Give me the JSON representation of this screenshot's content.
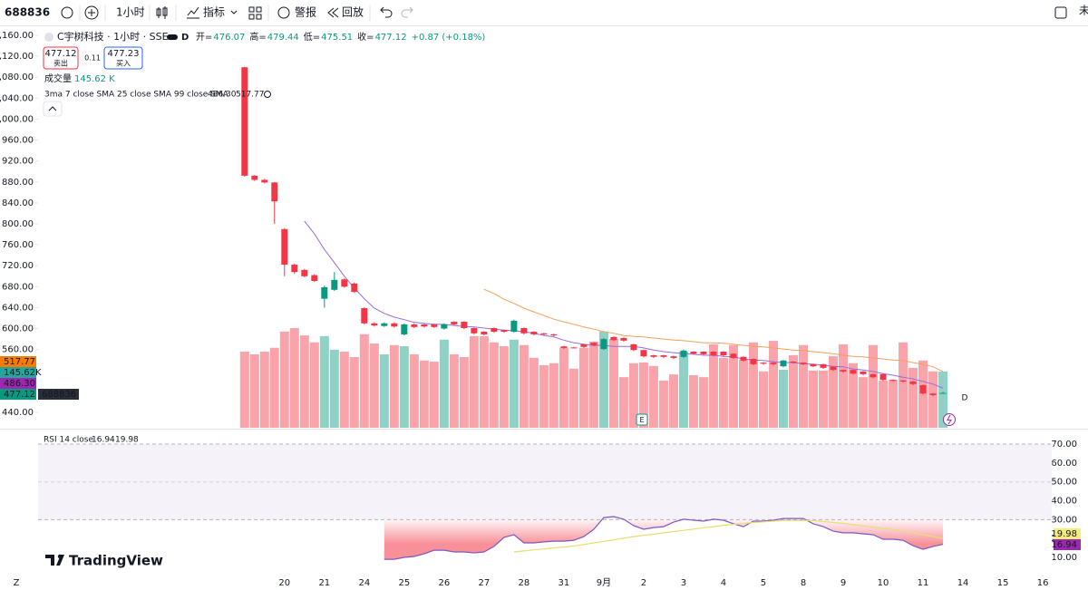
{
  "toolbar": {
    "symbol": "688836",
    "interval": "1小时",
    "indicators": "指标",
    "alerts": "警报",
    "replay": "回放",
    "cut_off": "未"
  },
  "legend": {
    "title": "C宇树科技 · 1小时 · SSE",
    "badge": "D",
    "ohlc": [
      {
        "label": "开=",
        "value": 476.07
      },
      {
        "label": "高=",
        "value": 479.44
      },
      {
        "label": "低=",
        "value": 475.51
      },
      {
        "label": "收=",
        "value": 477.12
      }
    ],
    "change": "+0.87 (+0.18%)",
    "sell": {
      "price": 477.12,
      "label": "卖出"
    },
    "spread": 0.11,
    "buy": {
      "price": 477.23,
      "label": "买入"
    },
    "volume": {
      "label": "成交量",
      "value": "145.62 K"
    },
    "ma": {
      "label": "3ma 7 close SMA 25 close SMA 99 close SMA",
      "values": [
        "486.30",
        "517.77"
      ]
    },
    "rsi": {
      "label": "RSI 14 close",
      "values": [
        "16.94",
        "19.98"
      ]
    }
  },
  "price_tags": [
    {
      "label": "517.77",
      "color": "#f57c00"
    },
    {
      "label": "145.62K",
      "color": "#26a69a"
    },
    {
      "label": "486.30",
      "color": "#9c27b0"
    },
    {
      "label": "477.12",
      "color": "#089981"
    }
  ],
  "symbol_tag": "688836",
  "rsi_tags": [
    {
      "label": "19.98",
      "color": "#f5ec7a"
    },
    {
      "label": "16.94",
      "color": "#9c27b0"
    }
  ],
  "markers": {
    "earnings": "E",
    "dividend": "D"
  },
  "corner_label": "Z",
  "watermark": "TradingView",
  "chart_data": [
    {
      "type": "candlestick",
      "xlim": [
        -20.7,
        80.9
      ],
      "xticks": [
        {
          "value": 4,
          "label": "20"
        },
        {
          "value": 8,
          "label": "21"
        },
        {
          "value": 12,
          "label": "24"
        },
        {
          "value": 16,
          "label": "25"
        },
        {
          "value": 20,
          "label": "26"
        },
        {
          "value": 24,
          "label": "27"
        },
        {
          "value": 28,
          "label": "28"
        },
        {
          "value": 32,
          "label": "31"
        },
        {
          "value": 36,
          "label": "9月"
        },
        {
          "value": 40,
          "label": "2"
        },
        {
          "value": 44,
          "label": "3"
        },
        {
          "value": 48,
          "label": "4"
        },
        {
          "value": 52,
          "label": "5"
        },
        {
          "value": 56,
          "label": "8"
        },
        {
          "value": 60,
          "label": "9"
        },
        {
          "value": 64,
          "label": "10"
        },
        {
          "value": 68,
          "label": "11"
        },
        {
          "value": 72,
          "label": "14"
        },
        {
          "value": 76,
          "label": "15"
        },
        {
          "value": 80,
          "label": "16"
        }
      ],
      "ylim": [
        410.6,
        1177.3
      ],
      "yticks": [
        {
          "value": 1160,
          "label": "1,160.00"
        },
        {
          "value": 1120,
          "label": "1,120.00"
        },
        {
          "value": 1080,
          "label": "1,080.00"
        },
        {
          "value": 1040,
          "label": "1,040.00"
        },
        {
          "value": 1000,
          "label": "1,000.00"
        },
        {
          "value": 960,
          "label": "960.00"
        },
        {
          "value": 920,
          "label": "920.00"
        },
        {
          "value": 880,
          "label": "880.00"
        },
        {
          "value": 840,
          "label": "840.00"
        },
        {
          "value": 800,
          "label": "800.00"
        },
        {
          "value": 760,
          "label": "760.00"
        },
        {
          "value": 720,
          "label": "720.00"
        },
        {
          "value": 680,
          "label": "680.00"
        },
        {
          "value": 640,
          "label": "640.00"
        },
        {
          "value": 600,
          "label": "600.00"
        },
        {
          "value": 560,
          "label": "560.00"
        },
        {
          "value": 440,
          "label": "440.00"
        }
      ],
      "up_color": "#089981",
      "down_color": "#f23645",
      "open": [
        1099,
        892,
        884,
        879,
        790,
        722,
        712,
        702,
        657,
        674,
        694,
        686,
        639,
        610,
        605,
        610,
        589,
        608,
        608,
        608,
        600,
        613,
        613,
        601,
        594,
        601,
        597,
        594,
        601,
        594,
        591,
        589,
        566,
        564,
        570,
        573,
        561,
        584,
        582,
        570,
        559,
        549,
        549,
        547,
        546,
        556,
        556,
        556,
        556,
        552,
        546,
        542,
        535,
        535,
        528,
        537,
        535,
        532,
        532,
        527,
        521,
        521,
        518,
        513,
        513,
        502,
        501,
        499,
        492,
        476,
        476.07
      ],
      "high": [
        1100,
        893,
        886,
        880,
        792,
        724,
        714,
        704,
        682,
        708,
        696,
        688,
        641,
        612,
        612,
        612,
        610,
        610,
        609,
        609,
        610,
        614,
        614,
        602,
        595,
        602,
        598,
        617,
        602,
        595,
        592,
        590,
        567,
        565,
        571,
        574,
        582,
        585,
        583,
        571,
        560,
        550,
        550,
        548,
        560,
        557,
        557,
        557,
        557,
        553,
        547,
        543,
        536,
        536,
        540,
        538,
        536,
        533,
        533,
        528,
        522,
        522,
        519,
        514,
        514,
        503,
        502,
        500,
        493,
        477,
        479.44
      ],
      "low": [
        890,
        882,
        877,
        800,
        700,
        705,
        698,
        689,
        640,
        672,
        678,
        668,
        608,
        604,
        603,
        602,
        587,
        601,
        602,
        601,
        598,
        606,
        599,
        589,
        587,
        592,
        592,
        592,
        589,
        587,
        587,
        585,
        561,
        562,
        563,
        566,
        559,
        576,
        575,
        557,
        545,
        544,
        544,
        542,
        544,
        550,
        549,
        547,
        547,
        542,
        537,
        530,
        531,
        530,
        526,
        533,
        530,
        526,
        523,
        519,
        516,
        512,
        511,
        505,
        500,
        499,
        497,
        492,
        474,
        471,
        475.51
      ],
      "close": [
        892,
        884,
        879,
        843,
        722,
        708,
        700,
        691,
        679,
        693,
        680,
        670,
        610,
        606,
        610,
        604,
        608,
        603,
        604,
        603,
        608,
        608,
        601,
        591,
        589,
        594,
        594,
        615,
        591,
        589,
        589,
        587,
        563,
        563,
        565,
        568,
        580,
        578,
        577,
        559,
        547,
        546,
        546,
        544,
        558,
        552,
        551,
        549,
        549,
        544,
        539,
        532,
        533,
        532,
        539,
        535,
        532,
        528,
        525,
        521,
        518,
        514,
        513,
        507,
        502,
        501,
        499,
        494,
        476,
        473,
        477.12
      ],
      "volume": [
        197,
        190,
        197,
        207,
        249,
        258,
        239,
        221,
        237,
        202,
        197,
        183,
        242,
        218,
        190,
        214,
        211,
        190,
        174,
        171,
        228,
        190,
        183,
        237,
        237,
        221,
        211,
        228,
        214,
        181,
        162,
        167,
        207,
        153,
        207,
        223,
        249,
        230,
        131,
        167,
        169,
        160,
        122,
        138,
        197,
        136,
        131,
        216,
        181,
        214,
        176,
        221,
        146,
        225,
        150,
        188,
        214,
        148,
        148,
        185,
        216,
        167,
        131,
        214,
        122,
        124,
        221,
        155,
        174,
        146,
        145.62
      ],
      "series": [
        {
          "color": "#9c6ade",
          "values": [
            null,
            null,
            null,
            null,
            null,
            null,
            805,
            781,
            751,
            726,
            700,
            677,
            657,
            639,
            629,
            622,
            617,
            612,
            610,
            608,
            608,
            606,
            604,
            603,
            601,
            599,
            597,
            596,
            594,
            591,
            587,
            584,
            578,
            573,
            570,
            568,
            568,
            566,
            566,
            566,
            563,
            559,
            556,
            554,
            552,
            551,
            549,
            549,
            547,
            546,
            542,
            540,
            539,
            537,
            535,
            535,
            533,
            532,
            530,
            528,
            527,
            523,
            521,
            518,
            514,
            511,
            507,
            504,
            499,
            494,
            486.3
          ]
        },
        {
          "color": "#f5a15c",
          "values": [
            null,
            null,
            null,
            null,
            null,
            null,
            null,
            null,
            null,
            null,
            null,
            null,
            null,
            null,
            null,
            null,
            null,
            null,
            null,
            null,
            null,
            null,
            null,
            null,
            675,
            667,
            656,
            648,
            639,
            632,
            625,
            618,
            613,
            608,
            603,
            599,
            594,
            591,
            587,
            585,
            584,
            582,
            580,
            578,
            577,
            575,
            573,
            573,
            572,
            570,
            568,
            566,
            565,
            563,
            561,
            559,
            558,
            556,
            554,
            552,
            549,
            547,
            546,
            544,
            542,
            540,
            539,
            535,
            532,
            527,
            517.77
          ]
        }
      ]
    },
    {
      "type": "line",
      "xlim": [
        -20.7,
        80.9
      ],
      "ylim": [
        -2,
        77.7
      ],
      "yticks": [
        {
          "value": 70,
          "label": "70.00"
        },
        {
          "value": 60,
          "label": "60.00"
        },
        {
          "value": 50,
          "label": "50.00"
        },
        {
          "value": 40,
          "label": "40.00"
        },
        {
          "value": 30,
          "label": "30.00"
        },
        {
          "value": 20,
          "label": "20.00"
        },
        {
          "value": 10,
          "label": "10.00"
        }
      ],
      "band": [
        30,
        70
      ],
      "midline": 50,
      "band_color": "#7e57c2",
      "fill_color": "#f23645",
      "series": [
        {
          "color": "#7e57c2",
          "values": [
            null,
            null,
            null,
            null,
            null,
            null,
            null,
            null,
            null,
            null,
            null,
            null,
            null,
            null,
            9,
            9,
            10,
            10.5,
            11.9,
            13.8,
            13.8,
            12.9,
            12.9,
            12.4,
            12.9,
            15.8,
            20.6,
            22,
            17.7,
            17.7,
            18.2,
            18.6,
            18.6,
            19.1,
            21,
            24.9,
            31.1,
            31.6,
            30.2,
            26.8,
            24.9,
            25.8,
            26.3,
            28.7,
            30.2,
            29.7,
            29.2,
            30.2,
            29.7,
            27.8,
            26.3,
            29.2,
            29.2,
            29.7,
            30.6,
            30.6,
            30.6,
            27.8,
            26.3,
            23.9,
            23,
            23,
            22.5,
            22,
            19.6,
            19.6,
            19.1,
            16.2,
            14.3,
            15.8,
            16.94
          ]
        },
        {
          "color": "#e6df72",
          "values": [
            null,
            null,
            null,
            null,
            null,
            null,
            null,
            null,
            null,
            null,
            null,
            null,
            null,
            null,
            null,
            null,
            null,
            null,
            null,
            null,
            null,
            null,
            null,
            null,
            null,
            null,
            null,
            12.9,
            13.4,
            14,
            14.5,
            15,
            15.5,
            16,
            16.8,
            17.7,
            18.5,
            19.3,
            20.2,
            21,
            21.7,
            22.3,
            23,
            23.7,
            24.3,
            25,
            25.7,
            26.3,
            27,
            27.5,
            28,
            28.5,
            28.8,
            29.2,
            29.5,
            29.5,
            29.5,
            29.5,
            29,
            28.5,
            28,
            27.3,
            26.7,
            26,
            25.3,
            24.7,
            24,
            23,
            22,
            21,
            19.98
          ]
        }
      ]
    }
  ]
}
